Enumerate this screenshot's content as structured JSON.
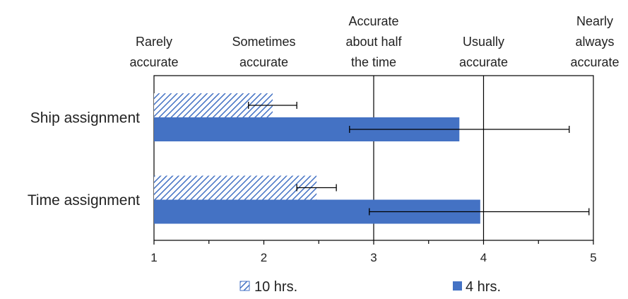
{
  "chart_data": {
    "type": "bar",
    "orientation": "horizontal",
    "categories": [
      "Ship assignment",
      "Time assignment"
    ],
    "series": [
      {
        "name": "10 hrs.",
        "values": [
          2.08,
          2.48
        ],
        "error_low": [
          1.86,
          2.3
        ],
        "error_high": [
          2.3,
          2.66
        ],
        "pattern": "hatched",
        "color": "#4472c4"
      },
      {
        "name": "4 hrs.",
        "values": [
          3.78,
          3.97
        ],
        "error_low": [
          2.78,
          2.96
        ],
        "error_high": [
          4.78,
          4.96
        ],
        "pattern": "solid",
        "color": "#4472c4"
      }
    ],
    "xlim": [
      1,
      5
    ],
    "x_ticks": [
      "1",
      "2",
      "3",
      "4",
      "5"
    ],
    "scale_labels": [
      {
        "value": 1,
        "lines": [
          "Rarely",
          "accurate"
        ]
      },
      {
        "value": 2,
        "lines": [
          "Sometimes",
          "accurate"
        ]
      },
      {
        "value": 3,
        "lines": [
          "Accurate",
          "about half",
          "the time"
        ]
      },
      {
        "value": 4,
        "lines": [
          "Usually",
          "accurate"
        ]
      },
      {
        "value": 5,
        "lines": [
          "Nearly",
          "always",
          "accurate"
        ]
      }
    ],
    "legend_position": "bottom",
    "vertical_gridlines_at": [
      3,
      4
    ]
  }
}
